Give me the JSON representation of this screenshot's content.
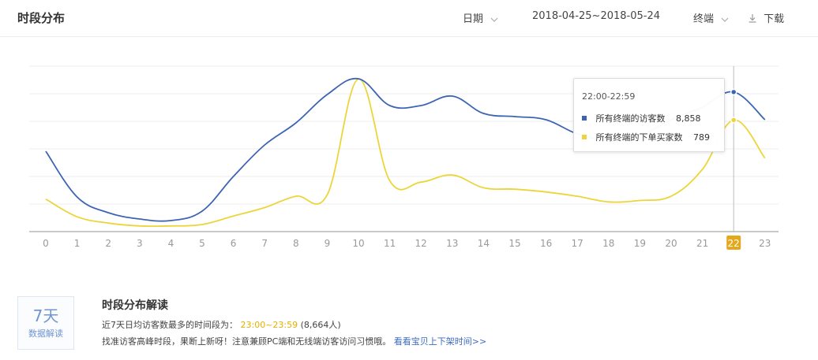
{
  "header": {
    "title": "时段分布",
    "date_label": "日期",
    "date_range": "2018-04-25~2018-05-24",
    "terminal_label": "终端",
    "download_label": "下载"
  },
  "colors": {
    "visitors": "#3d64b4",
    "buyers": "#ecd53a",
    "highlight_tick": "#e5a81d"
  },
  "tooltip": {
    "time": "22:00-22:59",
    "row1_label": "所有终端的访客数",
    "row1_value": "8,858",
    "row2_label": "所有终端的下单买家数",
    "row2_value": "789"
  },
  "chart_data": {
    "type": "line",
    "x": [
      "0",
      "1",
      "2",
      "3",
      "4",
      "5",
      "6",
      "7",
      "8",
      "9",
      "10",
      "11",
      "12",
      "13",
      "14",
      "15",
      "16",
      "17",
      "18",
      "19",
      "20",
      "21",
      "22",
      "23"
    ],
    "highlighted_x": "22",
    "y_axis_labels_shown": false,
    "grid": true,
    "series": [
      {
        "name": "所有终端的访客数",
        "values": [
          5100,
          2200,
          1200,
          800,
          700,
          1300,
          3500,
          5500,
          6900,
          8700,
          9700,
          8000,
          8000,
          8600,
          7500,
          7300,
          7100,
          6200,
          5800,
          6100,
          7100,
          7900,
          8858,
          7100
        ]
      },
      {
        "name": "所有终端的下单买家数",
        "values": [
          230,
          105,
          60,
          40,
          40,
          50,
          110,
          170,
          250,
          260,
          1080,
          360,
          350,
          400,
          310,
          300,
          280,
          250,
          210,
          220,
          250,
          440,
          789,
          520
        ]
      }
    ]
  },
  "interpretation": {
    "badge_big": "7天",
    "badge_small": "数据解读",
    "title": "时段分布解读",
    "line1_prefix": "近7天日均访客数最多的时间段为：",
    "line1_highlight": "23:00~23:59",
    "line1_suffix": "(8,664人)",
    "line2_text": "找准访客高峰时段，果断上新呀！注意兼顾PC端和无线端访客访问习惯哦。",
    "line2_link": "看看宝贝上下架时间>>"
  }
}
